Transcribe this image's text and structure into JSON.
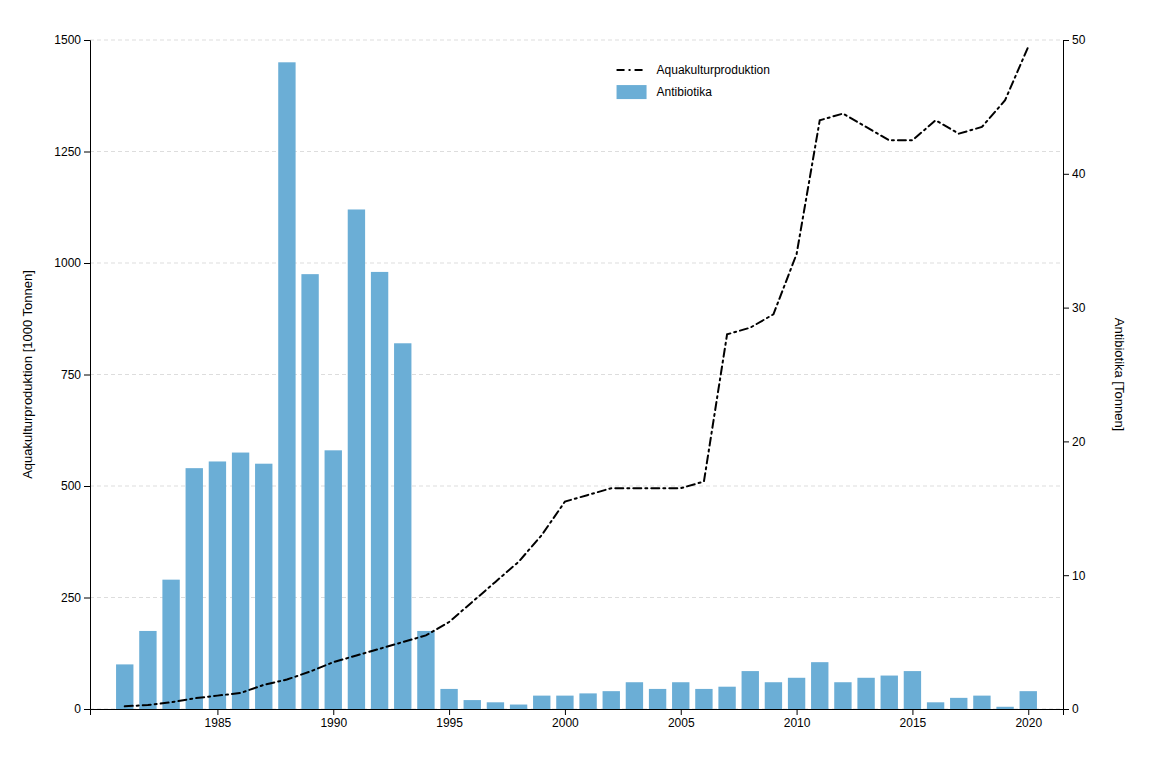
{
  "chart_data": {
    "type": "bar",
    "x": [
      1981,
      1982,
      1983,
      1984,
      1985,
      1986,
      1987,
      1988,
      1989,
      1990,
      1991,
      1992,
      1993,
      1994,
      1995,
      1996,
      1997,
      1998,
      1999,
      2000,
      2001,
      2002,
      2003,
      2004,
      2005,
      2006,
      2007,
      2008,
      2009,
      2010,
      2011,
      2012,
      2013,
      2014,
      2015,
      2016,
      2017,
      2018,
      2019,
      2020
    ],
    "xlim": [
      1979.5,
      2021.5
    ],
    "xticks": [
      1985,
      1990,
      1995,
      2000,
      2005,
      2010,
      2015,
      2020
    ],
    "ylabel": "Aquakulturproduktion [1000 Tonnen]",
    "ylim": [
      0,
      1500
    ],
    "yticks": [
      0,
      250,
      500,
      750,
      1000,
      1250,
      1500
    ],
    "y2label": "Antibiotika [Tonnen]",
    "y2lim": [
      0,
      50
    ],
    "y2ticks": [
      0,
      10,
      20,
      30,
      40,
      50
    ],
    "grid": true,
    "legend": "top",
    "series": [
      {
        "name": "Aquakulturproduktion",
        "type": "line",
        "axis": "y2",
        "color": "#000000",
        "line_style": "dashdot",
        "values": [
          0.2,
          0.3,
          0.5,
          0.8,
          1.0,
          1.2,
          1.8,
          2.2,
          2.8,
          3.5,
          4.0,
          4.5,
          5.0,
          5.5,
          6.5,
          8.0,
          9.5,
          11.0,
          13.0,
          15.5,
          16.0,
          16.5,
          16.5,
          16.5,
          16.5,
          17.0,
          28.0,
          28.5,
          29.5,
          34.0,
          44.0,
          44.5,
          43.5,
          42.5,
          42.5,
          44.0,
          43.0,
          43.5,
          45.5,
          49.5
        ]
      },
      {
        "name": "Antibiotika",
        "type": "bar",
        "color": "#6baed6",
        "values": [
          100,
          175,
          290,
          540,
          555,
          575,
          550,
          1450,
          975,
          580,
          1120,
          980,
          820,
          175,
          45,
          20,
          15,
          10,
          30,
          30,
          35,
          40,
          60,
          45,
          60,
          45,
          50,
          85,
          60,
          70,
          105,
          60,
          70,
          75,
          85,
          15,
          25,
          30,
          5,
          40
        ]
      }
    ]
  }
}
